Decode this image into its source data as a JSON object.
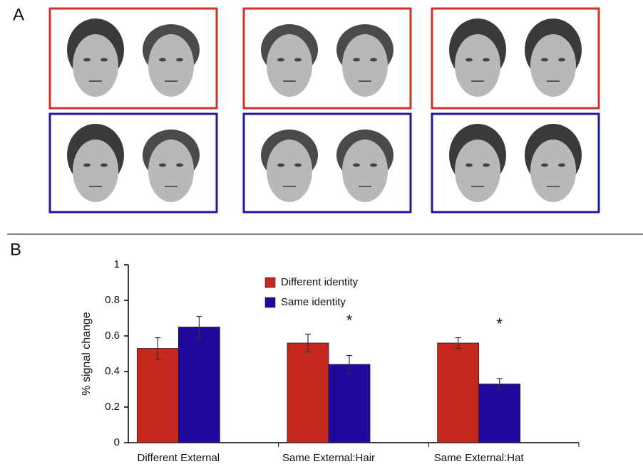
{
  "panel_labels": {
    "a": "A",
    "b": "B"
  },
  "chart_data": {
    "type": "bar",
    "y_label": "% signal change",
    "categories": [
      "Different External",
      "Same External:Hair",
      "Same External:Hat"
    ],
    "series": [
      {
        "name": "Different identity",
        "color": "#c4281c",
        "values": [
          0.53,
          0.56,
          0.56
        ],
        "errors": [
          0.06,
          0.05,
          0.03
        ]
      },
      {
        "name": "Same identity",
        "color": "#20089c",
        "values": [
          0.65,
          0.44,
          0.33
        ],
        "errors": [
          0.06,
          0.05,
          0.03
        ]
      }
    ],
    "annotations": [
      null,
      "*",
      "*"
    ],
    "ylim": [
      0,
      1
    ],
    "yticks": [
      0,
      0.2,
      0.4,
      0.6,
      0.8,
      1
    ],
    "grid": false,
    "legend": "top"
  }
}
